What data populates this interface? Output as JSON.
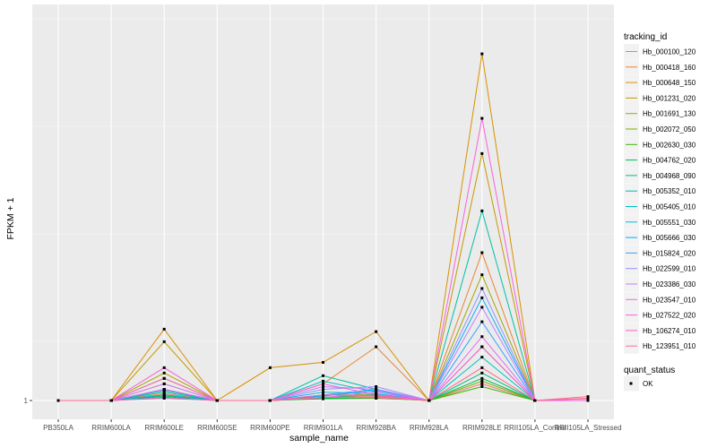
{
  "chart_data": {
    "type": "line",
    "xlabel": "sample_name",
    "ylabel": "FPKM + 1",
    "y_scale": "log",
    "y_tick_labels": [
      "1"
    ],
    "y_ticks": [
      1
    ],
    "ylim": [
      1,
      1.95
    ],
    "categories": [
      "PB350LA",
      "RRIM600LA",
      "RRIM600LE",
      "RRIM600SE",
      "RRIM600PE",
      "RRIM901LA",
      "RRIM928BA",
      "RRIM928LA",
      "RRIM928LE",
      "RRII105LA_Control",
      "RRII105LA_Stressed"
    ],
    "legend": {
      "title": "tracking_id",
      "position": "right",
      "shape_title": "quant_status",
      "shape_entries": [
        "OK"
      ]
    },
    "series": [
      {
        "name": "Hb_000100_120",
        "color": "#F8766D",
        "values": [
          1,
          1,
          1.012,
          1,
          1,
          1.006,
          1.008,
          1,
          1.03,
          1,
          1.004
        ]
      },
      {
        "name": "Hb_000418_160",
        "color": "#EA8331",
        "values": [
          1,
          1,
          1.03,
          1,
          1,
          1.03,
          1.1,
          1,
          1.3,
          1,
          1
        ]
      },
      {
        "name": "Hb_000648_150",
        "color": "#D89000",
        "values": [
          1,
          1,
          1.135,
          1,
          1.06,
          1.07,
          1.13,
          1,
          1.85,
          1,
          1
        ]
      },
      {
        "name": "Hb_001231_020",
        "color": "#C09B00",
        "values": [
          1,
          1,
          1.11,
          1,
          1,
          1.005,
          1.005,
          1,
          1.55,
          1,
          1
        ]
      },
      {
        "name": "Hb_001691_130",
        "color": "#A3A500",
        "values": [
          1,
          1,
          1.05,
          1,
          1,
          1.004,
          1.006,
          1,
          1.25,
          1,
          1
        ]
      },
      {
        "name": "Hb_002072_050",
        "color": "#7CAE00",
        "values": [
          1,
          1,
          1.04,
          1,
          1,
          1.01,
          1.01,
          1,
          1.035,
          1,
          1
        ]
      },
      {
        "name": "Hb_002630_030",
        "color": "#39B600",
        "values": [
          1,
          1,
          1.01,
          1,
          1,
          1.003,
          1.004,
          1,
          1.025,
          1,
          1
        ]
      },
      {
        "name": "Hb_004762_020",
        "color": "#00BB4E",
        "values": [
          1,
          1,
          1.008,
          1,
          1,
          1.004,
          1.005,
          1,
          1.04,
          1,
          1
        ]
      },
      {
        "name": "Hb_004968_090",
        "color": "#00BF7D",
        "values": [
          1,
          1,
          1.015,
          1,
          1,
          1.006,
          1.01,
          1,
          1.05,
          1,
          1
        ]
      },
      {
        "name": "Hb_005352_010",
        "color": "#00C1A3",
        "values": [
          1,
          1,
          1.02,
          1,
          1,
          1.045,
          1.02,
          1,
          1.4,
          1,
          1
        ]
      },
      {
        "name": "Hb_005405_010",
        "color": "#00BFC4",
        "values": [
          1,
          1,
          1.018,
          1,
          1,
          1.035,
          1.015,
          1,
          1.08,
          1,
          1
        ]
      },
      {
        "name": "Hb_005551_030",
        "color": "#00BAE0",
        "values": [
          1,
          1,
          1.01,
          1,
          1,
          1.015,
          1.012,
          1,
          1.1,
          1,
          1
        ]
      },
      {
        "name": "Hb_005666_030",
        "color": "#00B0F6",
        "values": [
          1,
          1,
          1.006,
          1,
          1,
          1.008,
          1.018,
          1,
          1.2,
          1,
          1
        ]
      },
      {
        "name": "Hb_015824_020",
        "color": "#35A2FF",
        "values": [
          1,
          1,
          1.004,
          1,
          1,
          1.01,
          1.02,
          1,
          1.15,
          1,
          1
        ]
      },
      {
        "name": "Hb_022599_010",
        "color": "#9590FF",
        "values": [
          1,
          1,
          1.02,
          1,
          1,
          1.02,
          1.025,
          1,
          1.22,
          1,
          1
        ]
      },
      {
        "name": "Hb_023386_030",
        "color": "#C77CFF",
        "values": [
          1,
          1,
          1.03,
          1,
          1,
          1.025,
          1.02,
          1,
          1.18,
          1,
          1
        ]
      },
      {
        "name": "Hb_023547_010",
        "color": "#E76BF3",
        "values": [
          1,
          1,
          1.02,
          1,
          1,
          1.005,
          1.015,
          1,
          1.12,
          1,
          1
        ]
      },
      {
        "name": "Hb_027522_020",
        "color": "#FA62DB",
        "values": [
          1,
          1,
          1.06,
          1,
          1,
          1.03,
          1.01,
          1,
          1.65,
          1,
          1
        ]
      },
      {
        "name": "Hb_106274_010",
        "color": "#FF62BC",
        "values": [
          1,
          1,
          1.04,
          1,
          1,
          1.01,
          1.008,
          1,
          1.1,
          1,
          1.003
        ]
      },
      {
        "name": "Hb_123951_010",
        "color": "#FF6C91",
        "values": [
          1,
          1,
          1.005,
          1,
          1,
          1.006,
          1.005,
          1,
          1.06,
          1,
          1.007
        ]
      }
    ]
  }
}
